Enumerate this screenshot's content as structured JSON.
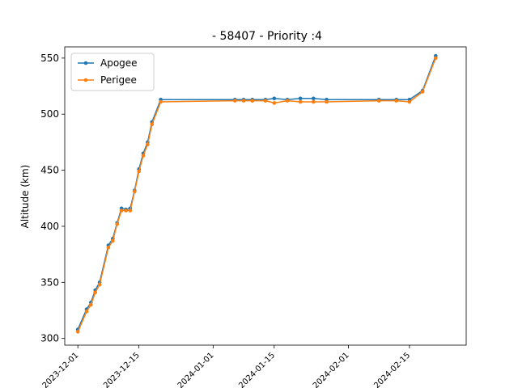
{
  "chart_data": {
    "type": "line",
    "title": "- 58407 - Priority :4",
    "xlabel": "",
    "ylabel": "Altitude (km)",
    "xlim": [
      "2023-11-28",
      "2024-02-28"
    ],
    "ylim": [
      294,
      560
    ],
    "y_ticks": [
      300,
      350,
      400,
      450,
      500,
      550
    ],
    "x_ticks": [
      "2023-12-01",
      "2023-12-15",
      "2024-01-01",
      "2024-01-15",
      "2024-02-01",
      "2024-02-15"
    ],
    "grid": false,
    "legend_position": "top-left",
    "series": [
      {
        "name": "Apogee",
        "color": "#1f77b4",
        "points": [
          [
            "2023-12-01",
            308
          ],
          [
            "2023-12-03",
            326
          ],
          [
            "2023-12-04",
            332
          ],
          [
            "2023-12-05",
            343
          ],
          [
            "2023-12-06",
            350
          ],
          [
            "2023-12-08",
            383
          ],
          [
            "2023-12-09",
            389
          ],
          [
            "2023-12-10",
            403
          ],
          [
            "2023-12-11",
            416
          ],
          [
            "2023-12-12",
            415
          ],
          [
            "2023-12-13",
            416
          ],
          [
            "2023-12-14",
            432
          ],
          [
            "2023-12-15",
            451
          ],
          [
            "2023-12-16",
            465
          ],
          [
            "2023-12-17",
            475
          ],
          [
            "2023-12-18",
            493
          ],
          [
            "2023-12-20",
            513
          ],
          [
            "2024-01-06",
            513
          ],
          [
            "2024-01-08",
            513
          ],
          [
            "2024-01-10",
            513
          ],
          [
            "2024-01-13",
            513
          ],
          [
            "2024-01-15",
            514
          ],
          [
            "2024-01-18",
            513
          ],
          [
            "2024-01-21",
            514
          ],
          [
            "2024-01-24",
            514
          ],
          [
            "2024-01-27",
            513
          ],
          [
            "2024-02-08",
            513
          ],
          [
            "2024-02-12",
            513
          ],
          [
            "2024-02-15",
            513
          ],
          [
            "2024-02-18",
            521
          ],
          [
            "2024-02-21",
            552
          ]
        ]
      },
      {
        "name": "Perigee",
        "color": "#ff7f0e",
        "points": [
          [
            "2023-12-01",
            306
          ],
          [
            "2023-12-03",
            324
          ],
          [
            "2023-12-04",
            330
          ],
          [
            "2023-12-05",
            341
          ],
          [
            "2023-12-06",
            348
          ],
          [
            "2023-12-08",
            381
          ],
          [
            "2023-12-09",
            387
          ],
          [
            "2023-12-10",
            402
          ],
          [
            "2023-12-11",
            414
          ],
          [
            "2023-12-12",
            414
          ],
          [
            "2023-12-13",
            414
          ],
          [
            "2023-12-14",
            431
          ],
          [
            "2023-12-15",
            449
          ],
          [
            "2023-12-16",
            463
          ],
          [
            "2023-12-17",
            473
          ],
          [
            "2023-12-18",
            491
          ],
          [
            "2023-12-20",
            511
          ],
          [
            "2024-01-06",
            512
          ],
          [
            "2024-01-08",
            512
          ],
          [
            "2024-01-10",
            512
          ],
          [
            "2024-01-13",
            512
          ],
          [
            "2024-01-15",
            510
          ],
          [
            "2024-01-18",
            512
          ],
          [
            "2024-01-21",
            511
          ],
          [
            "2024-01-24",
            511
          ],
          [
            "2024-01-27",
            511
          ],
          [
            "2024-02-08",
            512
          ],
          [
            "2024-02-12",
            512
          ],
          [
            "2024-02-15",
            511
          ],
          [
            "2024-02-18",
            520
          ],
          [
            "2024-02-21",
            550
          ]
        ]
      }
    ]
  }
}
